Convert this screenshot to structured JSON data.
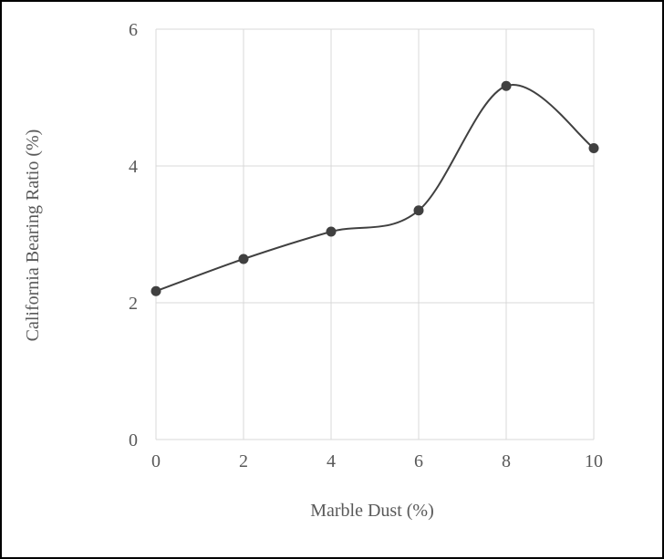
{
  "chart_data": {
    "type": "line",
    "smooth": true,
    "title": "",
    "xlabel": "Marble Dust (%)",
    "ylabel": "California Bearing Ratio (%)",
    "x": [
      0,
      2,
      4,
      6,
      8,
      10
    ],
    "series": [
      {
        "values": [
          2.17,
          2.64,
          3.04,
          3.35,
          5.17,
          4.26
        ]
      }
    ],
    "xlim": [
      0,
      10
    ],
    "ylim": [
      0,
      6
    ],
    "xticks": [
      "0",
      "2",
      "4",
      "6",
      "8",
      "10"
    ],
    "yticks": [
      "0",
      "2",
      "4",
      "6"
    ],
    "grid": true,
    "legend": "none",
    "colors": {
      "line": "#404040",
      "marker": "#404040",
      "grid": "#d9d9d9",
      "text": "#595959",
      "frame": "#000000"
    }
  }
}
